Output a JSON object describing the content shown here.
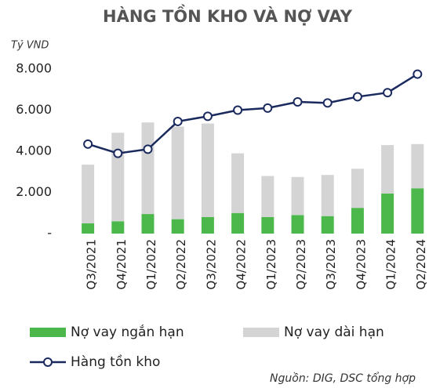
{
  "chart_data": {
    "type": "bar",
    "title": "HÀNG TỒN KHO VÀ NỢ VAY",
    "y_axis_label": "Tỷ VND",
    "source": "Nguồn: DIG, DSC tổng hợp",
    "categories": [
      "Q3/2021",
      "Q4/2021",
      "Q1/2022",
      "Q2/2022",
      "Q3/2022",
      "Q4/2022",
      "Q1/2023",
      "Q2/2023",
      "Q3/2023",
      "Q4/2023",
      "Q1/2024",
      "Q2/2024"
    ],
    "series": [
      {
        "name": "Nợ vay ngắn hạn",
        "color": "#4cb84c",
        "stack": true,
        "values": [
          500,
          600,
          950,
          700,
          800,
          1000,
          800,
          900,
          850,
          1250,
          1950,
          2200
        ]
      },
      {
        "name": "Nợ vay dài hạn",
        "color": "#d4d4d4",
        "stack": true,
        "values": [
          2850,
          4300,
          4450,
          4500,
          4550,
          2900,
          2000,
          1850,
          2000,
          1900,
          2350,
          2150
        ]
      },
      {
        "name": "Hàng tồn kho",
        "color": "#1a2a5e",
        "type": "line",
        "values": [
          4350,
          3900,
          4100,
          5450,
          5700,
          6000,
          6100,
          6400,
          6350,
          6650,
          6850,
          7750
        ]
      }
    ],
    "ylim": [
      0,
      8000
    ],
    "yticks": [
      {
        "value": 0,
        "label": "-"
      },
      {
        "value": 2000,
        "label": "2.000"
      },
      {
        "value": 4000,
        "label": "4.000"
      },
      {
        "value": 6000,
        "label": "6.000"
      },
      {
        "value": 8000,
        "label": "8.000"
      }
    ],
    "grid": false
  }
}
